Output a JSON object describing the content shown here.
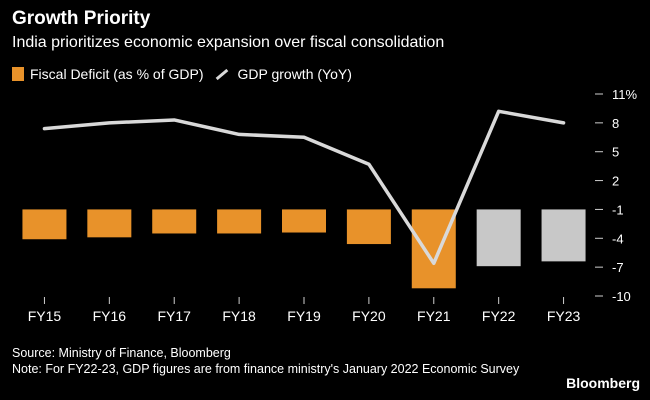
{
  "title": "Growth Priority",
  "subtitle": "India prioritizes economic expansion over fiscal consolidation",
  "legend": {
    "deficit": "Fiscal Deficit (as % of GDP)",
    "growth": "GDP growth (YoY)"
  },
  "footer": {
    "source": "Source: Ministry of Finance, Bloomberg",
    "note": "Note: For FY22-23, GDP figures are from finance ministry's January 2022 Economic Survey"
  },
  "brand": "Bloomberg",
  "chart_data": {
    "type": "bar",
    "categories": [
      "FY15",
      "FY16",
      "FY17",
      "FY18",
      "FY19",
      "FY20",
      "FY21",
      "FY22",
      "FY23"
    ],
    "series": [
      {
        "name": "Fiscal Deficit (as % of GDP)",
        "type": "bar",
        "values": [
          -4.1,
          -3.9,
          -3.5,
          -3.5,
          -3.4,
          -4.6,
          -9.2,
          -6.9,
          -6.4
        ],
        "colors": [
          "#E8922A",
          "#E8922A",
          "#E8922A",
          "#E8922A",
          "#E8922A",
          "#E8922A",
          "#E8922A",
          "#C8C8C8",
          "#C8C8C8"
        ]
      },
      {
        "name": "GDP growth (YoY)",
        "type": "line",
        "values": [
          7.4,
          8.0,
          8.3,
          6.8,
          6.5,
          3.7,
          -6.6,
          9.2,
          8.0
        ],
        "color": "#D9D9D9"
      }
    ],
    "yticks": [
      -10,
      -7,
      -4,
      -1,
      2,
      5,
      8,
      11
    ],
    "ytick_labels": [
      "-10",
      "-7",
      "-4",
      "-1",
      "2",
      "5",
      "8",
      "11%"
    ],
    "ylim": [
      -10,
      11
    ],
    "grid": false,
    "legend_position": "top-left"
  }
}
